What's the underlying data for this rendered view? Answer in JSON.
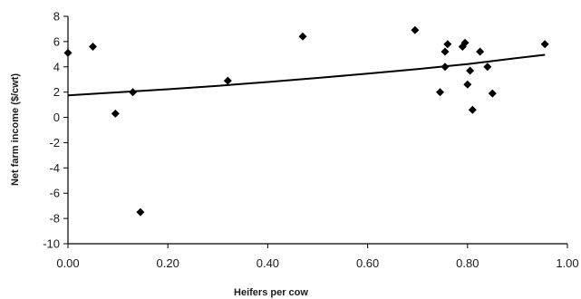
{
  "chart_data": {
    "type": "scatter",
    "title": "",
    "xlabel": "Heifers per cow",
    "ylabel": "Net farm income ($/cwt)",
    "xlim": [
      0,
      1
    ],
    "ylim": [
      -10,
      8
    ],
    "x_ticks": [
      "0.00",
      "0.20",
      "0.40",
      "0.60",
      "0.80",
      "1.00"
    ],
    "y_ticks": [
      "8",
      "6",
      "4",
      "2",
      "0",
      "-2",
      "-4",
      "-6",
      "-8",
      "-10"
    ],
    "grid": false,
    "legend": "none",
    "marker": "diamond",
    "series": [
      {
        "points": [
          {
            "x": 0.0,
            "y": 5.1
          },
          {
            "x": 0.05,
            "y": 5.6
          },
          {
            "x": 0.095,
            "y": 0.3
          },
          {
            "x": 0.13,
            "y": 2.0
          },
          {
            "x": 0.145,
            "y": -7.5
          },
          {
            "x": 0.32,
            "y": 2.9
          },
          {
            "x": 0.47,
            "y": 6.4
          },
          {
            "x": 0.695,
            "y": 6.9
          },
          {
            "x": 0.745,
            "y": 2.0
          },
          {
            "x": 0.755,
            "y": 4.0
          },
          {
            "x": 0.755,
            "y": 5.2
          },
          {
            "x": 0.76,
            "y": 5.8
          },
          {
            "x": 0.79,
            "y": 5.6
          },
          {
            "x": 0.795,
            "y": 5.9
          },
          {
            "x": 0.8,
            "y": 2.6
          },
          {
            "x": 0.805,
            "y": 3.7
          },
          {
            "x": 0.81,
            "y": 0.6
          },
          {
            "x": 0.825,
            "y": 5.2
          },
          {
            "x": 0.84,
            "y": 4.0
          },
          {
            "x": 0.85,
            "y": 1.9
          },
          {
            "x": 0.955,
            "y": 5.8
          }
        ]
      }
    ],
    "trendline": {
      "kind": "exponential",
      "points": [
        {
          "x": 0.0,
          "y": 1.75
        },
        {
          "x": 0.1,
          "y": 1.98
        },
        {
          "x": 0.2,
          "y": 2.23
        },
        {
          "x": 0.3,
          "y": 2.5
        },
        {
          "x": 0.4,
          "y": 2.8
        },
        {
          "x": 0.5,
          "y": 3.12
        },
        {
          "x": 0.6,
          "y": 3.46
        },
        {
          "x": 0.7,
          "y": 3.82
        },
        {
          "x": 0.8,
          "y": 4.22
        },
        {
          "x": 0.9,
          "y": 4.7
        },
        {
          "x": 0.955,
          "y": 4.95
        }
      ]
    },
    "colors": {
      "marker": "#000000",
      "line": "#000000",
      "axis": "#000000"
    }
  }
}
